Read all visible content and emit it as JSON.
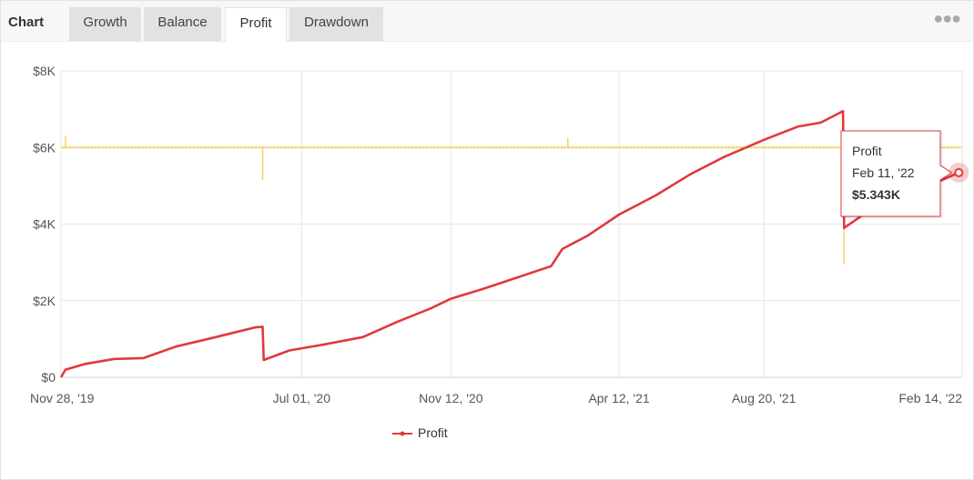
{
  "header": {
    "title": "Chart",
    "tabs": [
      {
        "label": "Growth",
        "active": false
      },
      {
        "label": "Balance",
        "active": false
      },
      {
        "label": "Profit",
        "active": true
      },
      {
        "label": "Drawdown",
        "active": false
      }
    ],
    "menu_icon": "more-dots-icon"
  },
  "tooltip": {
    "series": "Profit",
    "date": "Feb 11, '22",
    "value": "$5.343K"
  },
  "legend": {
    "label": "Profit"
  },
  "colors": {
    "profit_line": "#e0393e",
    "secondary_line": "#f5cd55",
    "grid": "#e6e6e6",
    "tab_active_bg": "#ffffff",
    "tab_bg": "#e2e2e2"
  },
  "chart_data": {
    "type": "line",
    "x_ticks": [
      "Nov 28, '19",
      "Jul 01, '20",
      "Nov 12, '20",
      "Apr 12, '21",
      "Aug 20, '21",
      "Feb 14, '22"
    ],
    "y_ticks": [
      "$0",
      "$2K",
      "$4K",
      "$6K",
      "$8K"
    ],
    "ylim": [
      0,
      8000
    ],
    "xlim": [
      "2019-11-28",
      "2022-02-14"
    ],
    "grid": true,
    "legend_position": "bottom",
    "series": [
      {
        "name": "Profit",
        "color": "#e0393e",
        "x": [
          "2019-11-28",
          "2019-12-02",
          "2019-12-20",
          "2020-01-15",
          "2020-02-10",
          "2020-03-10",
          "2020-04-15",
          "2020-05-20",
          "2020-05-27",
          "2020-05-28",
          "2020-06-20",
          "2020-07-20",
          "2020-08-25",
          "2020-09-25",
          "2020-10-25",
          "2020-11-12",
          "2020-12-10",
          "2021-01-10",
          "2021-02-10",
          "2021-02-20",
          "2021-03-15",
          "2021-04-12",
          "2021-05-15",
          "2021-06-15",
          "2021-07-15",
          "2021-08-20",
          "2021-09-20",
          "2021-10-10",
          "2021-10-20",
          "2021-10-30",
          "2021-10-31",
          "2021-11-15",
          "2021-12-15",
          "2022-01-15",
          "2022-02-11"
        ],
        "y": [
          0,
          200,
          350,
          480,
          500,
          800,
          1050,
          1300,
          1320,
          450,
          700,
          850,
          1050,
          1450,
          1800,
          2050,
          2300,
          2600,
          2900,
          3350,
          3700,
          4250,
          4750,
          5300,
          5750,
          6200,
          6550,
          6650,
          6800,
          6950,
          3900,
          4200,
          4600,
          5000,
          5343
        ]
      }
    ],
    "secondary": {
      "color": "#f5cd55",
      "baseline": 6000,
      "spikes": [
        {
          "x": "2019-12-02",
          "y": 6300
        },
        {
          "x": "2020-05-27",
          "y": 5150
        },
        {
          "x": "2021-02-25",
          "y": 6250
        },
        {
          "x": "2021-10-31",
          "y": 2950
        }
      ]
    },
    "tooltip": {
      "x": "2022-02-11",
      "y": 5343,
      "label": "Profit",
      "date": "Feb 11, '22",
      "value": "$5.343K"
    }
  }
}
